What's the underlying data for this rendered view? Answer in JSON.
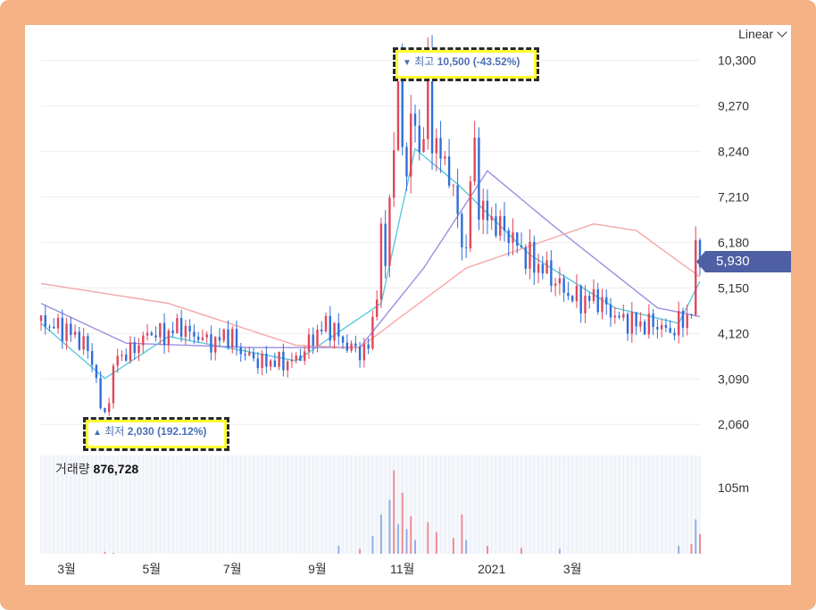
{
  "scale_select": {
    "label": "Linear"
  },
  "high_marker": {
    "label": "최고",
    "value": "10,500",
    "change": "(-43.52%)"
  },
  "low_marker": {
    "label": "최저",
    "value": "2,030",
    "change": "(192.12%)"
  },
  "current_price": "5,930",
  "volume": {
    "label": "거래량",
    "value": "876,728",
    "axis_label": "105m"
  },
  "colors": {
    "up": "#e0475a",
    "down": "#2f6fd8",
    "ma_short": "#5bc8e0",
    "ma_mid": "#9a8fe0",
    "ma_long": "#f5a7a7",
    "frame": "#f4b183",
    "tag": "#4e5fa3"
  },
  "chart_data": {
    "type": "candlestick",
    "y_ticks": [
      "10,300",
      "9,270",
      "8,240",
      "7,210",
      "6,180",
      "5,150",
      "4,120",
      "3,090",
      "2,060"
    ],
    "x_ticks": [
      "3월",
      "5월",
      "7월",
      "9월",
      "11월",
      "2021",
      "3월"
    ],
    "ylim": [
      1600,
      10900
    ],
    "grid": true,
    "series": [
      {
        "name": "close",
        "points": [
          [
            0,
            4400
          ],
          [
            4,
            4300
          ],
          [
            8,
            4250
          ],
          [
            12,
            4200
          ],
          [
            16,
            4050
          ],
          [
            20,
            3900
          ],
          [
            24,
            3500
          ],
          [
            26,
            3100
          ],
          [
            28,
            2400
          ],
          [
            30,
            2300
          ],
          [
            32,
            2700
          ],
          [
            34,
            3200
          ],
          [
            36,
            3700
          ],
          [
            38,
            3600
          ],
          [
            42,
            3700
          ],
          [
            46,
            3900
          ],
          [
            50,
            4100
          ],
          [
            54,
            4150
          ],
          [
            58,
            4050
          ],
          [
            62,
            4200
          ],
          [
            66,
            4300
          ],
          [
            70,
            4100
          ],
          [
            74,
            4050
          ],
          [
            78,
            3950
          ],
          [
            82,
            3900
          ],
          [
            86,
            4100
          ],
          [
            90,
            4000
          ],
          [
            94,
            3700
          ],
          [
            98,
            3600
          ],
          [
            102,
            3500
          ],
          [
            106,
            3450
          ],
          [
            110,
            3500
          ],
          [
            114,
            3450
          ],
          [
            118,
            3500
          ],
          [
            122,
            3600
          ],
          [
            126,
            3900
          ],
          [
            130,
            4150
          ],
          [
            134,
            4300
          ],
          [
            138,
            4200
          ],
          [
            142,
            3900
          ],
          [
            146,
            3800
          ],
          [
            150,
            3700
          ],
          [
            154,
            3800
          ],
          [
            156,
            4400
          ],
          [
            158,
            5200
          ],
          [
            160,
            6200
          ],
          [
            162,
            5800
          ],
          [
            164,
            7200
          ],
          [
            166,
            8400
          ],
          [
            168,
            9800
          ],
          [
            170,
            8500
          ],
          [
            172,
            7900
          ],
          [
            174,
            8700
          ],
          [
            176,
            9000
          ],
          [
            178,
            8200
          ],
          [
            180,
            8800
          ],
          [
            182,
            9800
          ],
          [
            184,
            8700
          ],
          [
            186,
            8400
          ],
          [
            188,
            8100
          ],
          [
            190,
            7900
          ],
          [
            192,
            7800
          ],
          [
            194,
            7400
          ],
          [
            196,
            6600
          ],
          [
            198,
            6300
          ],
          [
            200,
            6000
          ],
          [
            202,
            7600
          ],
          [
            204,
            8200
          ],
          [
            206,
            7200
          ],
          [
            208,
            6800
          ],
          [
            212,
            6700
          ],
          [
            216,
            6500
          ],
          [
            220,
            6400
          ],
          [
            224,
            6100
          ],
          [
            228,
            5900
          ],
          [
            232,
            5700
          ],
          [
            236,
            5600
          ],
          [
            240,
            5400
          ],
          [
            244,
            5200
          ],
          [
            248,
            5000
          ],
          [
            252,
            4900
          ],
          [
            256,
            4850
          ],
          [
            260,
            4950
          ],
          [
            264,
            4800
          ],
          [
            268,
            4600
          ],
          [
            272,
            4450
          ],
          [
            276,
            4400
          ],
          [
            280,
            4350
          ],
          [
            284,
            4300
          ],
          [
            288,
            4350
          ],
          [
            292,
            4250
          ],
          [
            296,
            4150
          ],
          [
            300,
            4350
          ],
          [
            304,
            4500
          ],
          [
            306,
            4650
          ],
          [
            308,
            5900
          ],
          [
            310,
            5930
          ]
        ]
      },
      {
        "name": "ma_short",
        "points": [
          [
            0,
            4350
          ],
          [
            30,
            3100
          ],
          [
            60,
            4050
          ],
          [
            120,
            3500
          ],
          [
            160,
            4800
          ],
          [
            176,
            8300
          ],
          [
            196,
            7500
          ],
          [
            230,
            5900
          ],
          [
            270,
            4700
          ],
          [
            300,
            4350
          ],
          [
            310,
            5300
          ]
        ]
      },
      {
        "name": "ma_mid",
        "points": [
          [
            0,
            4800
          ],
          [
            40,
            3900
          ],
          [
            100,
            3800
          ],
          [
            150,
            3800
          ],
          [
            180,
            5600
          ],
          [
            210,
            7800
          ],
          [
            240,
            6600
          ],
          [
            290,
            4700
          ],
          [
            310,
            4500
          ]
        ]
      },
      {
        "name": "ma_long",
        "points": [
          [
            0,
            5250
          ],
          [
            60,
            4800
          ],
          [
            120,
            3850
          ],
          [
            150,
            3800
          ],
          [
            200,
            5600
          ],
          [
            260,
            6600
          ],
          [
            280,
            6450
          ],
          [
            310,
            5400
          ]
        ]
      }
    ],
    "volume_bars": [
      [
        30,
        2
      ],
      [
        34,
        1
      ],
      [
        140,
        8
      ],
      [
        150,
        5
      ],
      [
        156,
        18
      ],
      [
        160,
        40
      ],
      [
        164,
        55
      ],
      [
        166,
        85
      ],
      [
        168,
        30
      ],
      [
        170,
        62
      ],
      [
        172,
        25
      ],
      [
        174,
        38
      ],
      [
        176,
        14
      ],
      [
        182,
        32
      ],
      [
        186,
        22
      ],
      [
        194,
        16
      ],
      [
        198,
        40
      ],
      [
        200,
        14
      ],
      [
        210,
        8
      ],
      [
        226,
        6
      ],
      [
        244,
        5
      ],
      [
        300,
        8
      ],
      [
        306,
        10
      ],
      [
        308,
        35
      ],
      [
        310,
        20
      ]
    ]
  }
}
